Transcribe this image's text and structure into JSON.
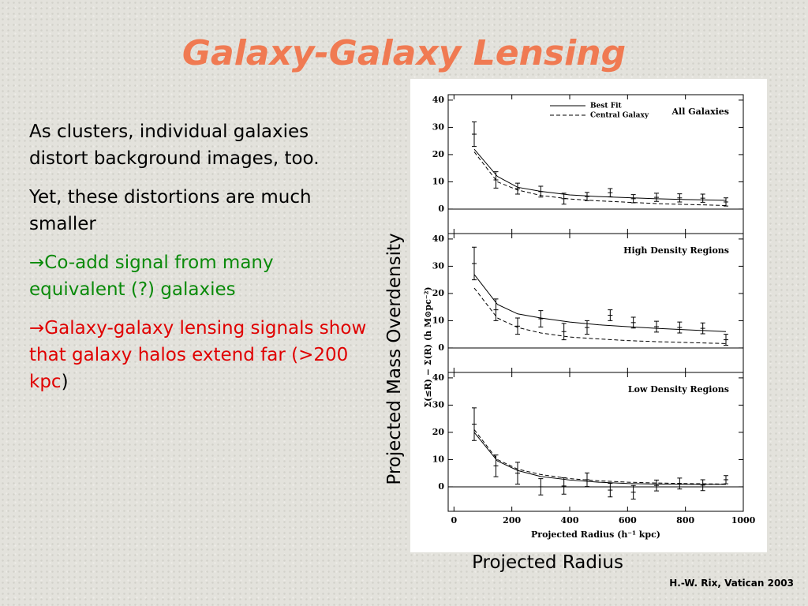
{
  "title": "Galaxy-Galaxy Lensing",
  "bullets": [
    {
      "text": "As clusters, individual galaxies distort background images, too.",
      "color": "#000000"
    },
    {
      "text": "Yet, these distortions are much smaller",
      "color": "#000000"
    },
    {
      "text": "→Co-add signal from many equivalent (?) galaxies",
      "color": "#0a8a0a"
    },
    {
      "text": "→Galaxy-galaxy lensing signals show that galaxy halos extend far (>200 kpc",
      "color": "#e00000",
      "tail": ")"
    }
  ],
  "figure": {
    "ylabel": "Σ(≤R) − Σ(R) (h M⊙pc⁻²)",
    "xlabel": "Projected Radius (h⁻¹ kpc)"
  },
  "side_label": "Projected Mass Overdensity",
  "bottom_label": "Projected Radius",
  "footer": "H.-W. Rix, Vatican 2003",
  "chart_data": [
    {
      "type": "scatter",
      "title": "All Galaxies",
      "xlim": [
        -20,
        1000
      ],
      "ylim": [
        -9,
        42
      ],
      "xticks": [
        0,
        200,
        400,
        600,
        800,
        1000
      ],
      "xtick_labels": false,
      "yticks": [
        0,
        10,
        20,
        30,
        40
      ],
      "legend": "top-center",
      "series": [
        {
          "style": "points",
          "color": "#000000",
          "x": [
            70,
            145,
            220,
            300,
            380,
            460,
            540,
            620,
            700,
            780,
            860,
            940
          ],
          "values": [
            27.5,
            10.7,
            7.5,
            6.4,
            3.8,
            4.6,
            6,
            3.8,
            4.3,
            4.1,
            4,
            2.6
          ],
          "errors": [
            4.5,
            3,
            2,
            2,
            2,
            1.5,
            1.5,
            1.5,
            1.5,
            1.5,
            1.5,
            1.5
          ]
        },
        {
          "style": "solid",
          "name": "Best Fit",
          "color": "#000000",
          "x": [
            70,
            150,
            220,
            300,
            400,
            500,
            600,
            700,
            800,
            940
          ],
          "values": [
            22,
            12,
            8,
            6.5,
            5.2,
            4.6,
            4.2,
            3.8,
            3.5,
            3.2
          ]
        },
        {
          "style": "dashed",
          "name": "Central Galaxy",
          "color": "#000000",
          "x": [
            70,
            150,
            220,
            300,
            400,
            500,
            600,
            700,
            800,
            940
          ],
          "values": [
            21,
            10,
            7,
            5,
            3.7,
            3,
            2.5,
            2,
            1.7,
            1.3
          ]
        }
      ]
    },
    {
      "type": "scatter",
      "title": "High Density Regions",
      "xlim": [
        -20,
        1000
      ],
      "ylim": [
        -9,
        42
      ],
      "xticks": [
        0,
        200,
        400,
        600,
        800,
        1000
      ],
      "xtick_labels": false,
      "yticks": [
        0,
        10,
        20,
        30,
        40
      ],
      "series": [
        {
          "style": "points",
          "color": "#000000",
          "x": [
            70,
            145,
            220,
            300,
            380,
            460,
            540,
            620,
            700,
            780,
            860,
            940
          ],
          "values": [
            31,
            14,
            8,
            10.7,
            6,
            7.5,
            12,
            9.3,
            7.8,
            7.5,
            7.2,
            3
          ],
          "errors": [
            6,
            4,
            3,
            3,
            3,
            2.5,
            2,
            2,
            2,
            2,
            2,
            2
          ]
        },
        {
          "style": "solid",
          "color": "#000000",
          "x": [
            70,
            150,
            220,
            300,
            400,
            500,
            600,
            700,
            800,
            940
          ],
          "values": [
            27,
            16,
            12.5,
            11,
            9.5,
            8.5,
            7.8,
            7.2,
            6.7,
            6
          ]
        },
        {
          "style": "dashed",
          "color": "#000000",
          "x": [
            70,
            150,
            220,
            300,
            400,
            500,
            600,
            700,
            800,
            940
          ],
          "values": [
            22,
            11,
            7.5,
            5.5,
            4,
            3.3,
            2.7,
            2.3,
            2,
            1.6
          ]
        }
      ]
    },
    {
      "type": "scatter",
      "title": "Low Density Regions",
      "xlim": [
        -20,
        1000
      ],
      "ylim": [
        -9,
        42
      ],
      "xticks": [
        0,
        200,
        400,
        600,
        800,
        1000
      ],
      "xtick_labels": true,
      "yticks": [
        0,
        10,
        20,
        30,
        40
      ],
      "series": [
        {
          "style": "points",
          "color": "#000000",
          "x": [
            70,
            145,
            220,
            300,
            380,
            460,
            540,
            620,
            700,
            780,
            860,
            940
          ],
          "values": [
            23,
            7.7,
            5,
            0,
            0.3,
            2.6,
            -1.2,
            -2,
            0.5,
            1.2,
            0.6,
            2.6
          ],
          "errors": [
            6,
            4,
            4,
            3,
            3,
            2.5,
            2.5,
            2.5,
            2,
            2,
            2,
            1.5
          ]
        },
        {
          "style": "solid",
          "color": "#000000",
          "x": [
            70,
            150,
            220,
            300,
            400,
            500,
            600,
            700,
            800,
            940
          ],
          "values": [
            20,
            9.5,
            6,
            3.8,
            2.5,
            1.7,
            1.2,
            1,
            0.9,
            0.9
          ]
        },
        {
          "style": "dashed",
          "color": "#000000",
          "x": [
            70,
            150,
            220,
            300,
            400,
            500,
            600,
            700,
            800,
            940
          ],
          "values": [
            21,
            10,
            6.5,
            4.5,
            3,
            2.2,
            1.7,
            1.4,
            1.2,
            1
          ]
        }
      ]
    }
  ]
}
